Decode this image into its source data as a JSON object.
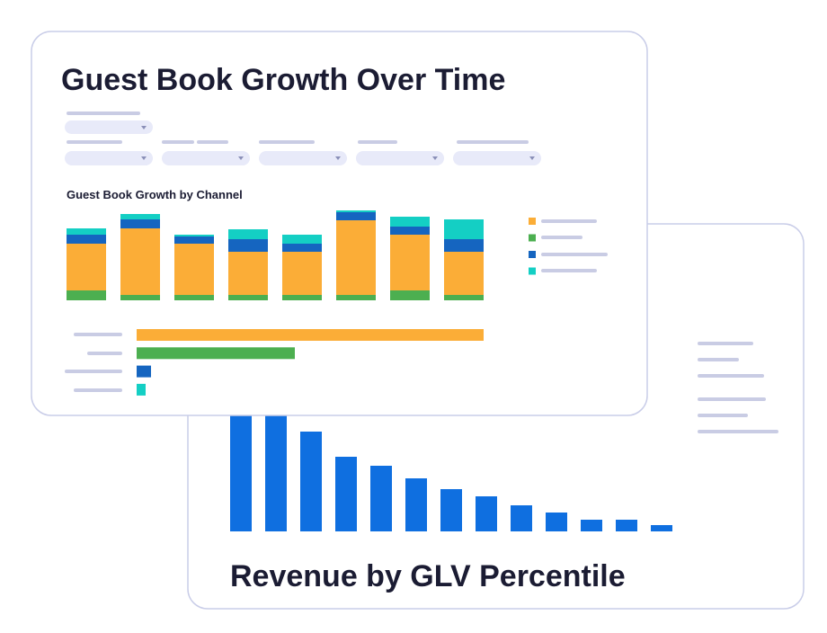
{
  "front_card": {
    "title": "Guest Book Growth Over Time",
    "chart_title": "Guest Book Growth by Channel",
    "stacked": {
      "series": [
        {
          "color": "#4caf50",
          "values": [
            11,
            6,
            6,
            6,
            6,
            6,
            11,
            6
          ]
        },
        {
          "color": "#fbad37",
          "values": [
            52,
            74,
            57,
            48,
            48,
            83,
            62,
            48
          ]
        },
        {
          "color": "#1565c0",
          "values": [
            10,
            10,
            8,
            14,
            9,
            9,
            9,
            14
          ]
        },
        {
          "color": "#14cfc4",
          "values": [
            7,
            6,
            2,
            11,
            10,
            2,
            11,
            22
          ]
        }
      ]
    },
    "hbars": {
      "values": [
        386,
        176,
        16,
        10
      ],
      "colors": [
        "#fbad37",
        "#4caf50",
        "#1565c0",
        "#14cfc4"
      ]
    }
  },
  "back_card": {
    "title": "Revenue by GLV Percentile",
    "bars": {
      "color": "#0f6fe0",
      "values": [
        160,
        150,
        111,
        83,
        73,
        59,
        47,
        39,
        29,
        21,
        13,
        13,
        7
      ]
    }
  }
}
